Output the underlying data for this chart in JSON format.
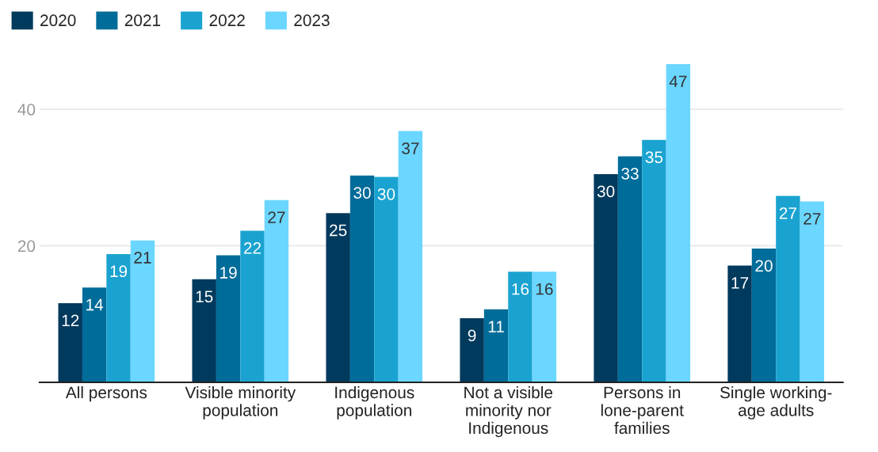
{
  "chart_data": {
    "type": "bar",
    "categories": [
      "All persons",
      "Visible minority\npopulation",
      "Indigenous\npopulation",
      "Not a visible\nminority nor\nIndigenous",
      "Persons in\nlone-parent\nfamilies",
      "Single working-\nage adults"
    ],
    "series": [
      {
        "name": "2020",
        "color": "#003a5d",
        "values": [
          11.6,
          15.1,
          24.8,
          9.4,
          30.5,
          17.1
        ],
        "value_labels": [
          "12",
          "15",
          "25",
          "9",
          "30",
          "17"
        ]
      },
      {
        "name": "2021",
        "color": "#006c99",
        "values": [
          13.9,
          18.6,
          30.3,
          10.7,
          33.1,
          19.6
        ],
        "value_labels": [
          "14",
          "19",
          "30",
          "11",
          "33",
          "20"
        ]
      },
      {
        "name": "2022",
        "color": "#1aa3d0",
        "values": [
          18.8,
          22.2,
          30.1,
          16.2,
          35.5,
          27.3
        ],
        "value_labels": [
          "19",
          "22",
          "30",
          "16",
          "35",
          "27"
        ]
      },
      {
        "name": "2023",
        "color": "#6bd6ff",
        "values": [
          20.8,
          26.7,
          36.8,
          16.2,
          46.6,
          26.5
        ],
        "value_labels": [
          "21",
          "27",
          "37",
          "16",
          "47",
          "27"
        ]
      }
    ],
    "ylim": [
      0,
      46.6
    ],
    "yticks": [
      20,
      40
    ],
    "grid": "y",
    "legend": "top left"
  }
}
